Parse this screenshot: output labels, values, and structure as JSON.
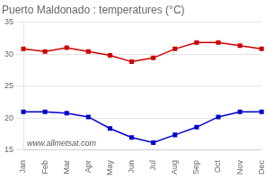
{
  "chart_data": {
    "type": "line",
    "title": "Puerto Maldonado : temperatures (°C)",
    "categories": [
      "Jan",
      "Feb",
      "Mar",
      "Apr",
      "May",
      "Jun",
      "Jul",
      "Aug",
      "Sep",
      "Oct",
      "Nov",
      "Dec"
    ],
    "series": [
      {
        "color": "#cc0000",
        "marker": "square",
        "values": [
          30.8,
          30.4,
          31.0,
          30.4,
          29.8,
          28.8,
          29.4,
          30.8,
          31.8,
          31.8,
          31.3,
          30.8
        ]
      },
      {
        "color": "#0000cc",
        "marker": "square",
        "values": [
          21.0,
          21.0,
          20.8,
          20.2,
          18.4,
          17.0,
          16.2,
          17.4,
          18.6,
          20.2,
          21.0,
          21.0
        ]
      }
    ],
    "ylim": [
      15,
      35
    ],
    "yticks": [
      15,
      20,
      25,
      30,
      35
    ],
    "grid": "y",
    "annotation": "www.allmetsat.com"
  }
}
